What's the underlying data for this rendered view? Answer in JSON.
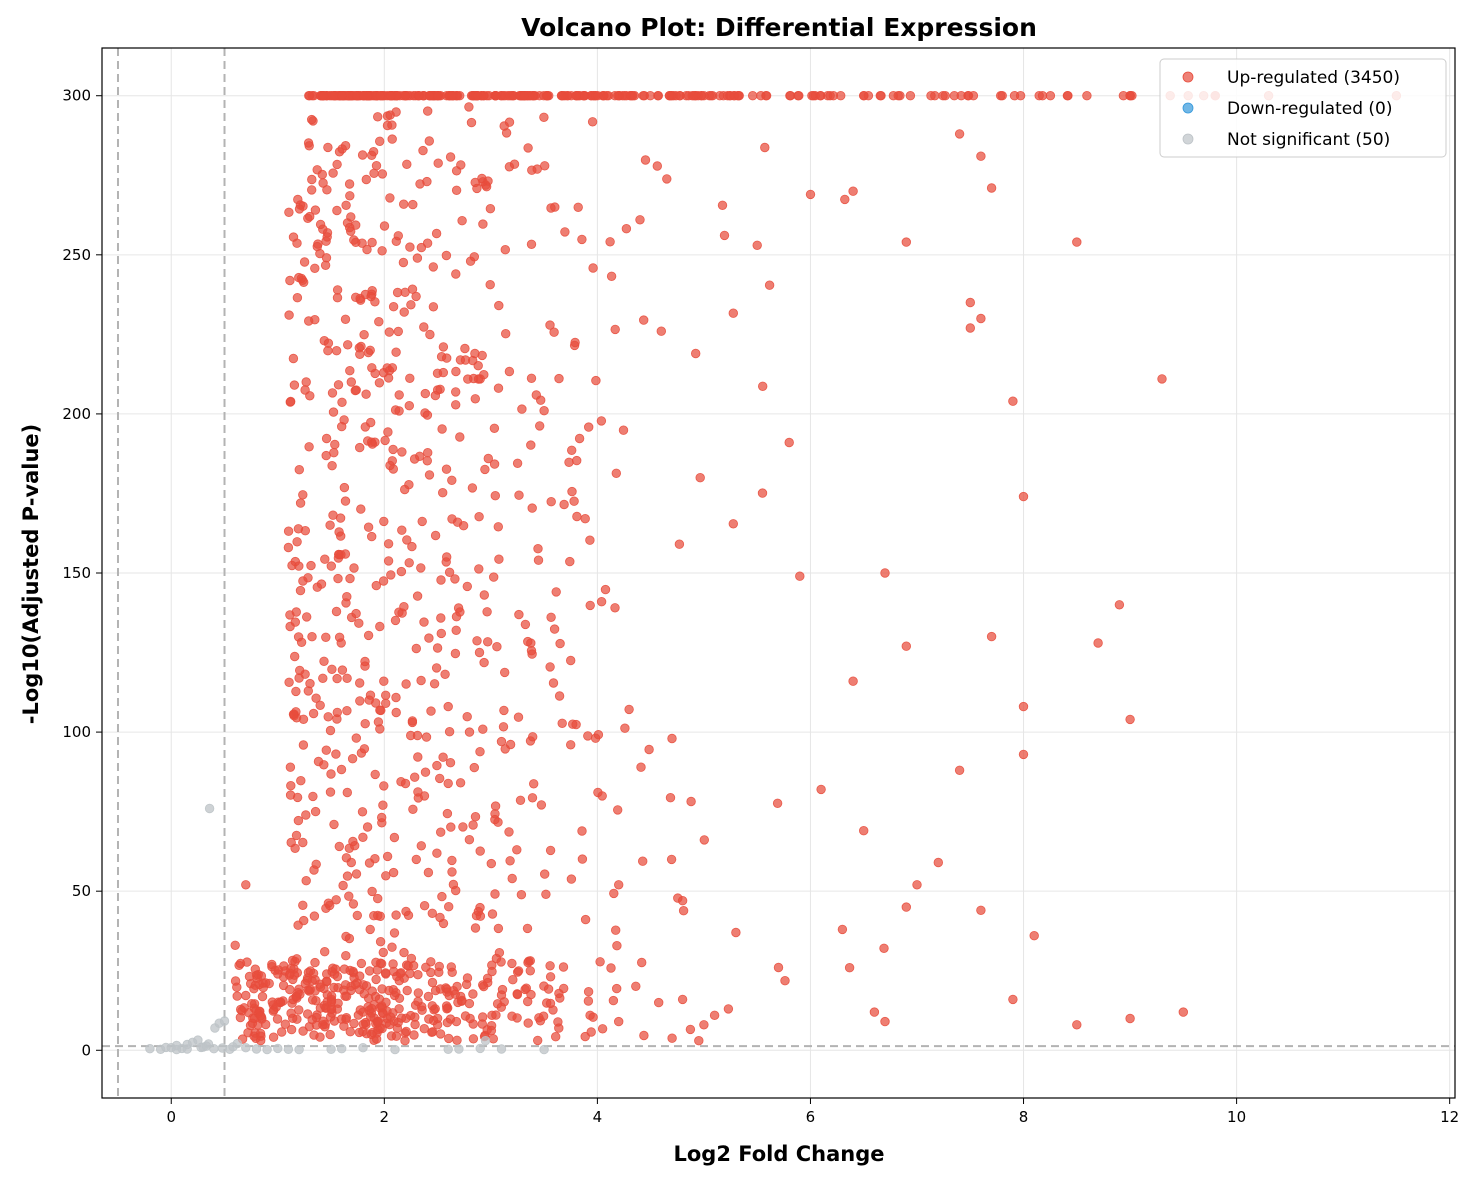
{
  "chart_data": {
    "type": "scatter",
    "title": "Volcano Plot: Differential Expression",
    "xlabel": "Log2 Fold Change",
    "ylabel": "-Log10(Adjusted P-value)",
    "xlim": [
      -0.65,
      12.05
    ],
    "ylim": [
      -15,
      315
    ],
    "xticks": [
      0,
      2,
      4,
      6,
      8,
      10,
      12
    ],
    "yticks": [
      0,
      50,
      100,
      150,
      200,
      250,
      300
    ],
    "grid": true,
    "legend_position": "top-right",
    "thresholds": {
      "log2fc": [
        -0.5,
        0.5
      ],
      "neg_log10_p": 1.3
    },
    "colors": {
      "up": "#e74c3c",
      "down": "#3498db",
      "ns": "#bdc3c7",
      "threshold": "#b3b3b3",
      "grid": "#e6e6e6"
    },
    "series": [
      {
        "name": "Up-regulated (3450)",
        "key": "up",
        "count": 3450,
        "points_sample": [
          [
            1.3,
            300
          ],
          [
            2.5,
            300
          ],
          [
            3.8,
            300
          ],
          [
            5.0,
            300
          ],
          [
            6.5,
            300
          ],
          [
            7.8,
            300
          ],
          [
            9.0,
            300
          ],
          [
            9.8,
            300
          ],
          [
            10.3,
            300
          ],
          [
            11.5,
            300
          ],
          [
            2.4,
            273
          ],
          [
            1.3,
            262
          ],
          [
            3.6,
            265
          ],
          [
            4.4,
            261
          ],
          [
            1.6,
            196
          ],
          [
            2.9,
            211
          ],
          [
            3.5,
            201
          ],
          [
            4.6,
            226
          ],
          [
            5.5,
            253
          ],
          [
            7.5,
            235
          ],
          [
            8.5,
            254
          ],
          [
            9.3,
            211
          ],
          [
            7.9,
            204
          ],
          [
            8.9,
            140
          ],
          [
            8.7,
            128
          ],
          [
            9.0,
            104
          ],
          [
            8.0,
            108
          ],
          [
            7.4,
            88
          ],
          [
            8.0,
            93
          ],
          [
            7.2,
            59
          ],
          [
            8.1,
            36
          ],
          [
            9.5,
            12
          ],
          [
            9.0,
            10
          ],
          [
            8.5,
            8
          ],
          [
            7.0,
            52
          ],
          [
            6.5,
            69
          ],
          [
            6.3,
            38
          ],
          [
            6.9,
            45
          ],
          [
            2.8,
            100
          ],
          [
            2.6,
            108
          ],
          [
            3.1,
            97
          ],
          [
            2.3,
            60
          ],
          [
            3.2,
            54
          ],
          [
            1.0,
            24
          ],
          [
            1.8,
            12
          ],
          [
            2.5,
            8
          ],
          [
            5.0,
            8
          ],
          [
            6.6,
            12
          ],
          [
            7.9,
            16
          ],
          [
            0.6,
            33
          ],
          [
            0.7,
            52
          ],
          [
            1.1,
            158
          ],
          [
            1.2,
            117
          ],
          [
            5.8,
            191
          ],
          [
            6.0,
            269
          ],
          [
            6.4,
            270
          ],
          [
            6.9,
            254
          ],
          [
            7.6,
            281
          ],
          [
            7.7,
            271
          ],
          [
            7.4,
            288
          ],
          [
            7.5,
            227
          ],
          [
            7.6,
            230
          ],
          [
            8.0,
            174
          ],
          [
            5.9,
            149
          ],
          [
            6.7,
            150
          ],
          [
            6.4,
            116
          ],
          [
            6.9,
            127
          ],
          [
            7.7,
            130
          ],
          [
            6.1,
            82
          ],
          [
            6.7,
            9
          ],
          [
            7.6,
            44
          ],
          [
            5.3,
            37
          ],
          [
            5.7,
            26
          ],
          [
            4.7,
            98
          ],
          [
            4.2,
            52
          ],
          [
            4.8,
            47
          ],
          [
            4.8,
            16
          ],
          [
            5.1,
            11
          ],
          [
            4.2,
            9
          ]
        ]
      },
      {
        "name": "Down-regulated (0)",
        "key": "down",
        "count": 0,
        "points_sample": []
      },
      {
        "name": "Not significant (50)",
        "key": "ns",
        "count": 50,
        "points_sample": [
          [
            0.36,
            76
          ],
          [
            -0.2,
            0.5
          ],
          [
            -0.1,
            0.3
          ],
          [
            0.0,
            0.8
          ],
          [
            0.05,
            1.5
          ],
          [
            0.1,
            0.6
          ],
          [
            0.15,
            1.8
          ],
          [
            0.2,
            2.5
          ],
          [
            0.25,
            3.2
          ],
          [
            0.3,
            1.0
          ],
          [
            0.35,
            2.0
          ],
          [
            0.4,
            0.5
          ],
          [
            0.41,
            7
          ],
          [
            0.45,
            8.5
          ],
          [
            0.5,
            9.2
          ],
          [
            0.55,
            0.3
          ],
          [
            0.7,
            0.8
          ],
          [
            0.8,
            0.4
          ],
          [
            0.9,
            0.2
          ],
          [
            1.0,
            0.6
          ],
          [
            1.1,
            0.3
          ],
          [
            1.2,
            0.2
          ],
          [
            1.5,
            0.3
          ],
          [
            1.6,
            0.5
          ],
          [
            1.8,
            0.8
          ],
          [
            2.1,
            0.2
          ],
          [
            2.6,
            0.3
          ],
          [
            2.7,
            0.4
          ],
          [
            2.9,
            0.6
          ],
          [
            2.95,
            3.0
          ],
          [
            3.1,
            0.4
          ],
          [
            3.5,
            0.2
          ],
          [
            0.15,
            0.4
          ],
          [
            0.28,
            0.9
          ],
          [
            0.62,
            2.1
          ],
          [
            0.05,
            0.2
          ],
          [
            -0.05,
            0.9
          ],
          [
            0.33,
            1.3
          ],
          [
            0.48,
            0.7
          ],
          [
            0.58,
            1.1
          ]
        ]
      }
    ]
  }
}
